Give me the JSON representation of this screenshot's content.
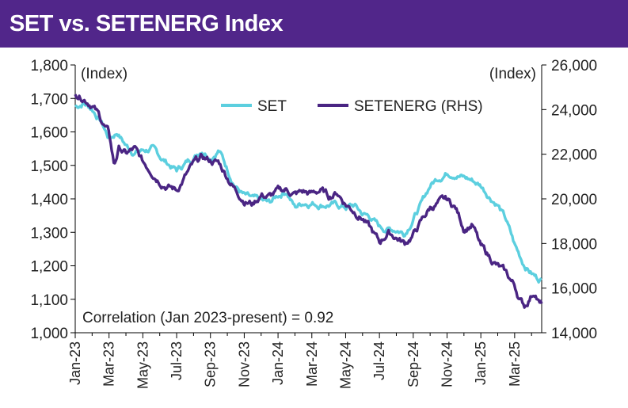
{
  "chart_data": {
    "type": "line",
    "title": "SET vs. SETENERG Index",
    "left_axis_label": "(Index)",
    "right_axis_label": "(Index)",
    "left_ylim": [
      1000,
      1800
    ],
    "left_ticks": [
      "1,000",
      "1,100",
      "1,200",
      "1,300",
      "1,400",
      "1,500",
      "1,600",
      "1,700",
      "1,800"
    ],
    "right_ylim": [
      14000,
      26000
    ],
    "right_ticks": [
      "14,000",
      "16,000",
      "18,000",
      "20,000",
      "22,000",
      "24,000",
      "26,000"
    ],
    "x_ticks": [
      "Jan-23",
      "Mar-23",
      "May-23",
      "Jul-23",
      "Sep-23",
      "Nov-23",
      "Jan-24",
      "Mar-24",
      "May-24",
      "Jul-24",
      "Sep-24",
      "Nov-24",
      "Jan-25",
      "Mar-25"
    ],
    "x_range_months": [
      0,
      27.6
    ],
    "annotation": "Correlation (Jan 2023-present) = 0.92",
    "legend": "top-center",
    "series": [
      {
        "name": "SET",
        "axis": "left",
        "color": "#5ccfdf",
        "points": [
          [
            0,
            1675
          ],
          [
            0.5,
            1688
          ],
          [
            1,
            1670
          ],
          [
            1.5,
            1635
          ],
          [
            2,
            1580
          ],
          [
            2.5,
            1600
          ],
          [
            3,
            1560
          ],
          [
            3.5,
            1540
          ],
          [
            4,
            1545
          ],
          [
            4.5,
            1550
          ],
          [
            5,
            1525
          ],
          [
            5.5,
            1505
          ],
          [
            6,
            1485
          ],
          [
            6.5,
            1505
          ],
          [
            7,
            1525
          ],
          [
            7.5,
            1550
          ],
          [
            8,
            1530
          ],
          [
            8.5,
            1550
          ],
          [
            9,
            1490
          ],
          [
            9.5,
            1440
          ],
          [
            10,
            1410
          ],
          [
            10.5,
            1395
          ],
          [
            11,
            1390
          ],
          [
            11.5,
            1385
          ],
          [
            12,
            1410
          ],
          [
            12.5,
            1425
          ],
          [
            13,
            1375
          ],
          [
            13.5,
            1390
          ],
          [
            14,
            1390
          ],
          [
            14.5,
            1385
          ],
          [
            15,
            1385
          ],
          [
            15.5,
            1380
          ],
          [
            16,
            1375
          ],
          [
            16.5,
            1380
          ],
          [
            17,
            1355
          ],
          [
            17.5,
            1345
          ],
          [
            18,
            1315
          ],
          [
            18.5,
            1310
          ],
          [
            19,
            1310
          ],
          [
            19.5,
            1300
          ],
          [
            20,
            1345
          ],
          [
            20.5,
            1385
          ],
          [
            21,
            1440
          ],
          [
            21.5,
            1465
          ],
          [
            22,
            1480
          ],
          [
            22.5,
            1480
          ],
          [
            23,
            1465
          ],
          [
            23.5,
            1455
          ],
          [
            24,
            1440
          ],
          [
            24.5,
            1410
          ],
          [
            25,
            1385
          ],
          [
            25.5,
            1335
          ],
          [
            26,
            1260
          ],
          [
            26.5,
            1210
          ],
          [
            27,
            1180
          ],
          [
            27.3,
            1165
          ],
          [
            27.6,
            1160
          ]
        ]
      },
      {
        "name": "SETENERG (RHS)",
        "axis": "right",
        "color": "#4a2583",
        "points": [
          [
            0,
            24800
          ],
          [
            0.5,
            24600
          ],
          [
            1,
            24300
          ],
          [
            1.5,
            23600
          ],
          [
            2,
            22900
          ],
          [
            2.3,
            21500
          ],
          [
            2.6,
            22300
          ],
          [
            3,
            22000
          ],
          [
            3.5,
            22200
          ],
          [
            4,
            21600
          ],
          [
            4.5,
            21300
          ],
          [
            5,
            20900
          ],
          [
            5.5,
            20600
          ],
          [
            6,
            20400
          ],
          [
            6.5,
            21000
          ],
          [
            7,
            21500
          ],
          [
            7.5,
            21800
          ],
          [
            8,
            21700
          ],
          [
            8.5,
            21600
          ],
          [
            9,
            21000
          ],
          [
            9.5,
            20400
          ],
          [
            10,
            20000
          ],
          [
            10.5,
            19800
          ],
          [
            11,
            20200
          ],
          [
            11.5,
            20100
          ],
          [
            12,
            20300
          ],
          [
            12.5,
            20400
          ],
          [
            13,
            20200
          ],
          [
            13.5,
            20300
          ],
          [
            14,
            20200
          ],
          [
            14.5,
            20400
          ],
          [
            15,
            20100
          ],
          [
            15.5,
            20300
          ],
          [
            16,
            19800
          ],
          [
            16.5,
            19500
          ],
          [
            17,
            19200
          ],
          [
            17.5,
            18600
          ],
          [
            18,
            18000
          ],
          [
            18.5,
            18500
          ],
          [
            19,
            18300
          ],
          [
            19.5,
            18000
          ],
          [
            20,
            18400
          ],
          [
            20.5,
            19000
          ],
          [
            21,
            19600
          ],
          [
            21.5,
            19800
          ],
          [
            22,
            19900
          ],
          [
            22.5,
            19600
          ],
          [
            23,
            18700
          ],
          [
            23.5,
            18900
          ],
          [
            24,
            17800
          ],
          [
            24.5,
            17400
          ],
          [
            25,
            17000
          ],
          [
            25.5,
            16600
          ],
          [
            26,
            16100
          ],
          [
            26.3,
            15500
          ],
          [
            26.6,
            15200
          ],
          [
            26.9,
            15600
          ],
          [
            27.2,
            15900
          ],
          [
            27.5,
            15300
          ],
          [
            27.6,
            15300
          ]
        ]
      }
    ]
  }
}
